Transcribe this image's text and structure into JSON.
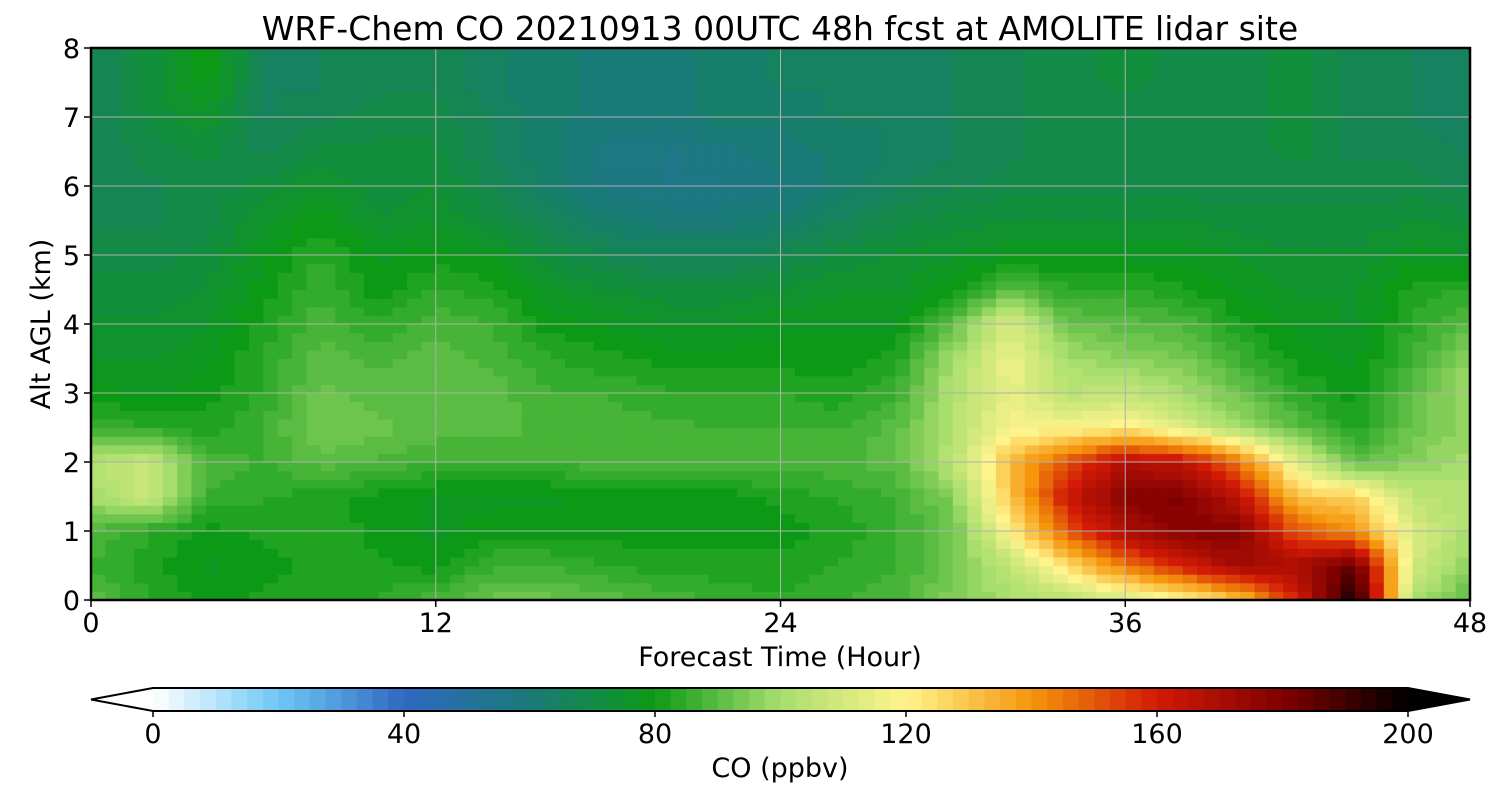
{
  "chart_data": {
    "type": "heatmap",
    "title": "WRF-Chem CO  20210913 00UTC 48h fcst at AMOLITE lidar site",
    "xlabel": "Forecast Time (Hour)",
    "ylabel": "Alt AGL (km)",
    "xlim": [
      0,
      48
    ],
    "ylim": [
      0,
      8
    ],
    "x_ticks": [
      0,
      12,
      24,
      36,
      48
    ],
    "y_ticks": [
      0,
      1,
      2,
      3,
      4,
      5,
      6,
      7,
      8
    ],
    "grid": true,
    "x": [
      0,
      2,
      4,
      6,
      8,
      10,
      12,
      14,
      16,
      18,
      20,
      22,
      24,
      26,
      28,
      30,
      32,
      34,
      36,
      38,
      40,
      42,
      44,
      46,
      48
    ],
    "y": [
      0,
      0.5,
      1,
      1.5,
      2,
      2.5,
      3,
      3.5,
      4,
      4.5,
      5,
      5.5,
      6,
      6.5,
      7,
      7.5,
      8
    ],
    "z": [
      [
        90,
        84,
        80,
        82,
        83,
        84,
        88,
        92,
        92,
        90,
        88,
        86,
        84,
        86,
        88,
        95,
        100,
        104,
        110,
        118,
        130,
        160,
        198,
        100,
        90
      ],
      [
        86,
        82,
        78,
        80,
        82,
        82,
        80,
        86,
        86,
        84,
        82,
        82,
        82,
        84,
        86,
        92,
        105,
        125,
        145,
        160,
        172,
        170,
        185,
        110,
        96
      ],
      [
        88,
        84,
        80,
        82,
        84,
        80,
        78,
        80,
        80,
        80,
        80,
        80,
        80,
        82,
        86,
        92,
        120,
        150,
        170,
        178,
        178,
        150,
        140,
        112,
        100
      ],
      [
        100,
        108,
        86,
        84,
        82,
        80,
        78,
        78,
        78,
        80,
        80,
        80,
        82,
        84,
        86,
        95,
        130,
        162,
        178,
        180,
        165,
        130,
        128,
        105,
        102
      ],
      [
        102,
        108,
        88,
        86,
        90,
        88,
        86,
        86,
        86,
        88,
        88,
        88,
        88,
        88,
        90,
        104,
        132,
        152,
        168,
        165,
        145,
        112,
        90,
        96,
        100
      ],
      [
        86,
        84,
        82,
        86,
        94,
        92,
        90,
        90,
        88,
        88,
        87,
        86,
        86,
        86,
        90,
        102,
        118,
        118,
        122,
        112,
        100,
        90,
        82,
        92,
        98
      ],
      [
        80,
        78,
        80,
        84,
        92,
        90,
        90,
        90,
        86,
        86,
        84,
        84,
        84,
        82,
        86,
        102,
        115,
        104,
        106,
        100,
        92,
        84,
        80,
        90,
        100
      ],
      [
        76,
        76,
        78,
        84,
        90,
        88,
        90,
        88,
        84,
        82,
        80,
        80,
        80,
        80,
        82,
        100,
        116,
        100,
        96,
        94,
        86,
        80,
        78,
        86,
        96
      ],
      [
        74,
        74,
        76,
        82,
        88,
        84,
        88,
        86,
        80,
        78,
        76,
        76,
        78,
        78,
        78,
        90,
        112,
        92,
        90,
        88,
        82,
        78,
        76,
        84,
        90
      ],
      [
        72,
        72,
        74,
        80,
        86,
        80,
        84,
        82,
        76,
        74,
        72,
        72,
        74,
        76,
        76,
        80,
        90,
        84,
        84,
        82,
        78,
        76,
        76,
        82,
        84
      ],
      [
        70,
        70,
        72,
        78,
        84,
        78,
        80,
        78,
        72,
        68,
        66,
        66,
        68,
        72,
        74,
        76,
        78,
        78,
        78,
        78,
        76,
        74,
        74,
        78,
        76
      ],
      [
        68,
        68,
        70,
        76,
        80,
        74,
        76,
        72,
        66,
        62,
        60,
        60,
        62,
        66,
        70,
        72,
        74,
        74,
        74,
        74,
        72,
        72,
        72,
        74,
        72
      ],
      [
        66,
        68,
        70,
        72,
        76,
        72,
        74,
        68,
        62,
        58,
        56,
        56,
        58,
        62,
        66,
        68,
        70,
        70,
        70,
        70,
        70,
        70,
        70,
        70,
        68
      ],
      [
        66,
        70,
        72,
        68,
        72,
        72,
        72,
        66,
        62,
        58,
        56,
        58,
        60,
        62,
        64,
        66,
        68,
        70,
        70,
        70,
        70,
        72,
        68,
        68,
        66
      ],
      [
        66,
        72,
        76,
        66,
        68,
        70,
        70,
        66,
        62,
        60,
        60,
        62,
        62,
        64,
        64,
        66,
        68,
        70,
        70,
        70,
        70,
        72,
        68,
        66,
        64
      ],
      [
        66,
        72,
        80,
        66,
        66,
        68,
        68,
        64,
        62,
        60,
        60,
        62,
        64,
        64,
        66,
        66,
        68,
        70,
        72,
        70,
        70,
        72,
        68,
        66,
        64
      ],
      [
        66,
        72,
        82,
        66,
        66,
        68,
        68,
        64,
        62,
        60,
        60,
        62,
        64,
        64,
        66,
        66,
        68,
        70,
        72,
        70,
        70,
        72,
        68,
        66,
        64
      ]
    ],
    "colorbar": {
      "label": "CO  (ppbv)",
      "min": 0,
      "max": 200,
      "ticks": [
        0,
        40,
        80,
        120,
        160,
        200
      ],
      "extend": "both",
      "colors": [
        "#ffffff",
        "#6ec8f5",
        "#2f68c0",
        "#1a7a78",
        "#0c9a16",
        "#a8de6e",
        "#fff48c",
        "#f5960c",
        "#d21a06",
        "#800000",
        "#000000"
      ]
    }
  }
}
